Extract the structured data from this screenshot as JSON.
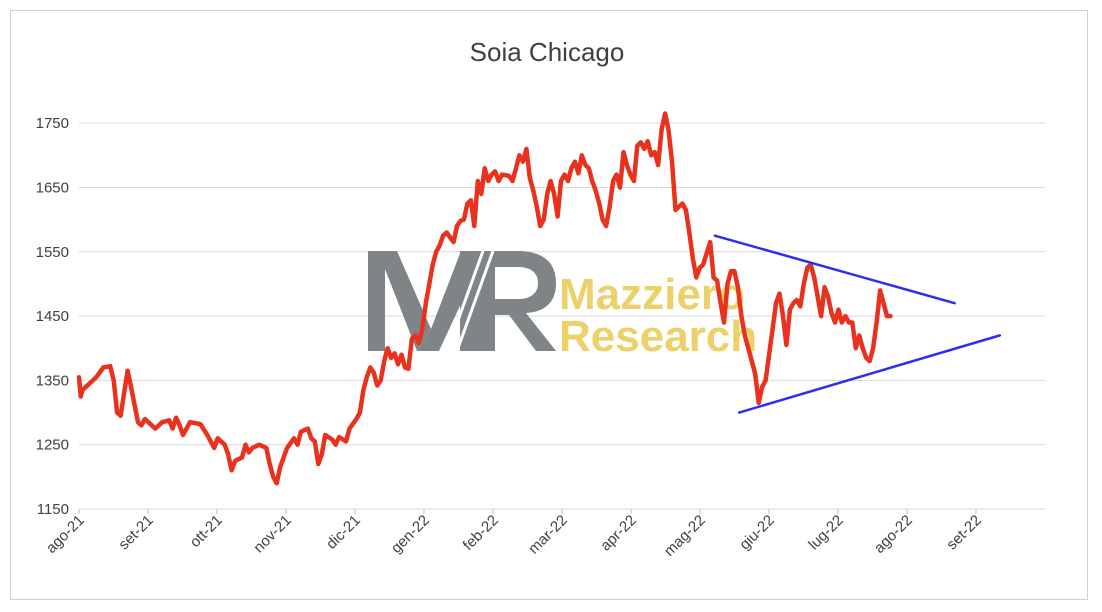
{
  "chart_data": {
    "type": "line",
    "title": "Soia Chicago",
    "xlabel": "",
    "ylabel": "",
    "ylim": [
      1150,
      1800
    ],
    "yticks": [
      1150,
      1250,
      1350,
      1450,
      1550,
      1650,
      1750
    ],
    "x_tick_labels": [
      "ago-21",
      "set-21",
      "ott-21",
      "nov-21",
      "dic-21",
      "gen-22",
      "feb-22",
      "mar-22",
      "apr-22",
      "mag-22",
      "giu-22",
      "lug-22",
      "ago-22",
      "set-22"
    ],
    "grid": "horizontal",
    "legend": "none",
    "series": [
      {
        "color": "#e8321e",
        "points": [
          [
            0,
            1355
          ],
          [
            0.5,
            1325
          ],
          [
            1,
            1335
          ],
          [
            2,
            1340
          ],
          [
            3,
            1345
          ],
          [
            5,
            1355
          ],
          [
            7,
            1370
          ],
          [
            9,
            1372
          ],
          [
            10,
            1350
          ],
          [
            11,
            1300
          ],
          [
            12,
            1295
          ],
          [
            13,
            1330
          ],
          [
            14,
            1365
          ],
          [
            15,
            1340
          ],
          [
            17,
            1285
          ],
          [
            18,
            1280
          ],
          [
            19,
            1290
          ],
          [
            20,
            1285
          ],
          [
            22,
            1275
          ],
          [
            24,
            1285
          ],
          [
            26,
            1288
          ],
          [
            27,
            1275
          ],
          [
            28,
            1292
          ],
          [
            29,
            1280
          ],
          [
            30,
            1265
          ],
          [
            32,
            1285
          ],
          [
            35,
            1282
          ],
          [
            37,
            1265
          ],
          [
            39,
            1245
          ],
          [
            40,
            1260
          ],
          [
            42,
            1250
          ],
          [
            43,
            1235
          ],
          [
            44,
            1210
          ],
          [
            45,
            1225
          ],
          [
            47,
            1230
          ],
          [
            48,
            1250
          ],
          [
            49,
            1238
          ],
          [
            50,
            1245
          ],
          [
            52,
            1250
          ],
          [
            54,
            1245
          ],
          [
            55,
            1220
          ],
          [
            56,
            1200
          ],
          [
            57,
            1190
          ],
          [
            58,
            1215
          ],
          [
            59,
            1230
          ],
          [
            60,
            1245
          ],
          [
            62,
            1260
          ],
          [
            63,
            1250
          ],
          [
            64,
            1270
          ],
          [
            66,
            1275
          ],
          [
            67,
            1260
          ],
          [
            68,
            1255
          ],
          [
            69,
            1220
          ],
          [
            70,
            1235
          ],
          [
            71,
            1265
          ],
          [
            73,
            1258
          ],
          [
            74,
            1250
          ],
          [
            75,
            1262
          ],
          [
            77,
            1255
          ],
          [
            78,
            1275
          ],
          [
            80,
            1290
          ],
          [
            81,
            1300
          ],
          [
            82,
            1335
          ],
          [
            83,
            1355
          ],
          [
            84,
            1370
          ],
          [
            85,
            1362
          ],
          [
            86,
            1342
          ],
          [
            87,
            1350
          ],
          [
            88,
            1380
          ],
          [
            89,
            1400
          ],
          [
            90,
            1385
          ],
          [
            91,
            1392
          ],
          [
            92,
            1375
          ],
          [
            93,
            1390
          ],
          [
            94,
            1370
          ],
          [
            95,
            1368
          ],
          [
            96,
            1415
          ],
          [
            97,
            1420
          ],
          [
            98,
            1408
          ],
          [
            99,
            1430
          ],
          [
            100,
            1470
          ],
          [
            101,
            1500
          ],
          [
            102,
            1530
          ],
          [
            103,
            1550
          ],
          [
            104,
            1560
          ],
          [
            105,
            1575
          ],
          [
            106,
            1580
          ],
          [
            108,
            1565
          ],
          [
            109,
            1590
          ],
          [
            110,
            1598
          ],
          [
            111,
            1600
          ],
          [
            112,
            1625
          ],
          [
            113,
            1630
          ],
          [
            114,
            1590
          ],
          [
            115,
            1660
          ],
          [
            116,
            1640
          ],
          [
            117,
            1680
          ],
          [
            118,
            1660
          ],
          [
            119,
            1670
          ],
          [
            120,
            1675
          ],
          [
            121,
            1660
          ],
          [
            122,
            1670
          ],
          [
            124,
            1668
          ],
          [
            125,
            1660
          ],
          [
            126,
            1680
          ],
          [
            127,
            1700
          ],
          [
            128,
            1690
          ],
          [
            129,
            1710
          ],
          [
            130,
            1665
          ],
          [
            131,
            1645
          ],
          [
            132,
            1620
          ],
          [
            133,
            1590
          ],
          [
            134,
            1600
          ],
          [
            135,
            1640
          ],
          [
            136,
            1660
          ],
          [
            137,
            1640
          ],
          [
            138,
            1605
          ],
          [
            139,
            1660
          ],
          [
            140,
            1670
          ],
          [
            141,
            1660
          ],
          [
            142,
            1680
          ],
          [
            143,
            1690
          ],
          [
            144,
            1672
          ],
          [
            145,
            1700
          ],
          [
            146,
            1685
          ],
          [
            147,
            1680
          ],
          [
            148,
            1660
          ],
          [
            149,
            1645
          ],
          [
            150,
            1625
          ],
          [
            151,
            1600
          ],
          [
            152,
            1590
          ],
          [
            153,
            1620
          ],
          [
            154,
            1660
          ],
          [
            155,
            1670
          ],
          [
            156,
            1650
          ],
          [
            157,
            1705
          ],
          [
            158,
            1685
          ],
          [
            159,
            1670
          ],
          [
            160,
            1660
          ],
          [
            161,
            1715
          ],
          [
            162,
            1720
          ],
          [
            163,
            1710
          ],
          [
            164,
            1722
          ],
          [
            165,
            1700
          ],
          [
            166,
            1705
          ],
          [
            167,
            1685
          ],
          [
            168,
            1740
          ],
          [
            169,
            1765
          ],
          [
            170,
            1740
          ],
          [
            171,
            1690
          ],
          [
            172,
            1615
          ],
          [
            173,
            1620
          ],
          [
            174,
            1625
          ],
          [
            175,
            1615
          ],
          [
            176,
            1580
          ],
          [
            177,
            1540
          ],
          [
            178,
            1510
          ],
          [
            179,
            1525
          ],
          [
            180,
            1530
          ],
          [
            181,
            1548
          ],
          [
            182,
            1565
          ],
          [
            183,
            1510
          ],
          [
            184,
            1505
          ],
          [
            185,
            1470
          ],
          [
            186,
            1440
          ],
          [
            187,
            1500
          ],
          [
            188,
            1520
          ],
          [
            189,
            1520
          ],
          [
            190,
            1495
          ],
          [
            191,
            1450
          ],
          [
            192,
            1420
          ],
          [
            193,
            1400
          ],
          [
            194,
            1380
          ],
          [
            195,
            1360
          ],
          [
            196,
            1315
          ],
          [
            197,
            1340
          ],
          [
            198,
            1350
          ],
          [
            199,
            1390
          ],
          [
            200,
            1430
          ],
          [
            201,
            1470
          ],
          [
            202,
            1485
          ],
          [
            203,
            1450
          ],
          [
            204,
            1405
          ],
          [
            205,
            1460
          ],
          [
            206,
            1470
          ],
          [
            207,
            1475
          ],
          [
            208,
            1465
          ],
          [
            209,
            1500
          ],
          [
            210,
            1525
          ],
          [
            211,
            1530
          ],
          [
            212,
            1510
          ],
          [
            213,
            1480
          ],
          [
            214,
            1450
          ],
          [
            215,
            1495
          ],
          [
            216,
            1480
          ],
          [
            217,
            1455
          ],
          [
            218,
            1440
          ],
          [
            219,
            1460
          ],
          [
            220,
            1440
          ],
          [
            221,
            1450
          ],
          [
            222,
            1440
          ],
          [
            223,
            1440
          ],
          [
            224,
            1400
          ],
          [
            225,
            1420
          ],
          [
            226,
            1400
          ],
          [
            227,
            1385
          ],
          [
            228,
            1380
          ],
          [
            229,
            1400
          ],
          [
            230,
            1440
          ],
          [
            231,
            1490
          ],
          [
            232,
            1470
          ],
          [
            233,
            1450
          ],
          [
            234,
            1450
          ]
        ]
      }
    ],
    "annotations": {
      "upper_trendline": {
        "from": [
          183,
          1575
        ],
        "to": [
          252,
          1470
        ],
        "color": "#2a2ff0"
      },
      "lower_trendline": {
        "from": [
          190,
          1300
        ],
        "to": [
          265,
          1420
        ],
        "color": "#2a2ff0"
      }
    },
    "watermark": {
      "logo": "MR",
      "line1": "Mazziero",
      "line2": "Research",
      "text_color": "#ecd06a",
      "logo_color": "#7f8487"
    }
  }
}
